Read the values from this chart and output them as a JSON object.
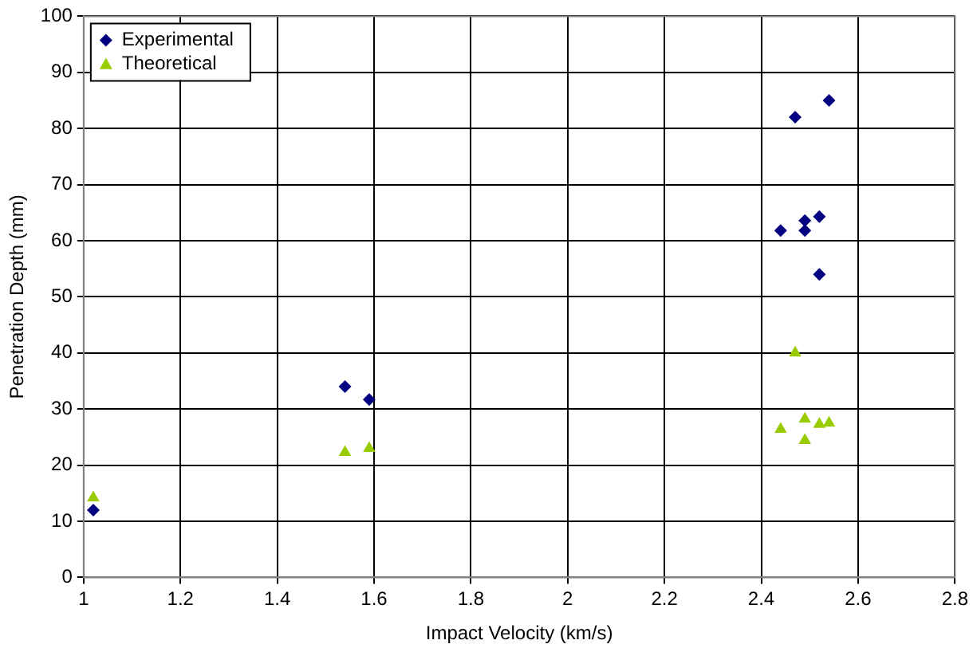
{
  "chart_data": {
    "type": "scatter",
    "xlabel": "Impact Velocity (km/s)",
    "ylabel": "Penetration Depth (mm)",
    "xlim": [
      1,
      2.8
    ],
    "xticks": [
      1,
      1.2,
      1.4,
      1.6,
      1.8,
      2,
      2.2,
      2.4,
      2.6,
      2.8
    ],
    "ylim": [
      0,
      100
    ],
    "yticks": [
      0,
      10,
      20,
      30,
      40,
      50,
      60,
      70,
      80,
      90,
      100
    ],
    "grid": true,
    "legend": "top left",
    "series": [
      {
        "name": "Experimental",
        "color": "#000080",
        "marker": "diamond",
        "x": [
          1.02,
          1.54,
          1.59,
          2.44,
          2.47,
          2.49,
          2.49,
          2.52,
          2.52,
          2.54
        ],
        "values": [
          12,
          34,
          31.7,
          61.8,
          82,
          63.6,
          61.8,
          64.3,
          54,
          85
        ]
      },
      {
        "name": "Theoretical",
        "color": "#99cc00",
        "marker": "triangle",
        "x": [
          1.02,
          1.54,
          1.59,
          2.44,
          2.47,
          2.49,
          2.49,
          2.52,
          2.54
        ],
        "values": [
          14.2,
          22.3,
          23,
          26.4,
          40,
          28.2,
          24.4,
          27.3,
          27.5
        ]
      }
    ]
  }
}
